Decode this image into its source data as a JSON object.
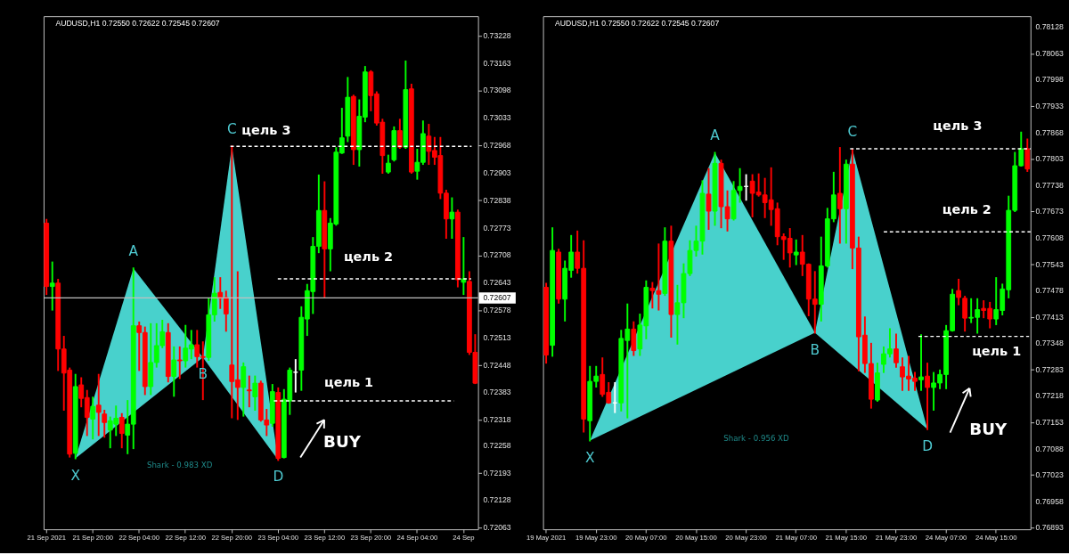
{
  "chart_data": [
    {
      "type": "candlestick",
      "title": "AUDUSD,H1  0.72550 0.72622 0.72545 0.72607",
      "grid": false,
      "categories": [
        "21 Sep 2021",
        null,
        null,
        null,
        null,
        null,
        null,
        null,
        "21 Sep 20:00",
        null,
        null,
        null,
        null,
        null,
        null,
        null,
        "22 Sep 04:00",
        null,
        null,
        null,
        null,
        null,
        null,
        null,
        "22 Sep 12:00",
        null,
        null,
        null,
        null,
        null,
        null,
        null,
        "22 Sep 20:00",
        null,
        null,
        null,
        null,
        null,
        null,
        null,
        "23 Sep 04:00",
        null,
        null,
        null,
        null,
        null,
        null,
        null,
        "23 Sep 12:00",
        null,
        null,
        null,
        null,
        null,
        null,
        null,
        "23 Sep 20:00",
        null,
        null,
        null,
        null,
        null,
        null,
        null,
        "24 Sep 04:00",
        null,
        null,
        null,
        null,
        null,
        null,
        null,
        "24 Sep",
        null,
        null
      ],
      "ohlc": [
        [
          0.72784,
          0.72792,
          0.72616,
          0.72634
        ],
        [
          0.72634,
          0.72691,
          0.72579,
          0.72642
        ],
        [
          0.72642,
          0.7265,
          0.72436,
          0.72486
        ],
        [
          0.72486,
          0.72515,
          0.72342,
          0.72429
        ],
        [
          0.72436,
          0.7244,
          0.72231,
          0.72237
        ],
        [
          0.72239,
          0.72425,
          0.72227,
          0.72397
        ],
        [
          0.72401,
          0.72417,
          0.7235,
          0.72369
        ],
        [
          0.72371,
          0.72387,
          0.72282,
          0.72324
        ],
        [
          0.7232,
          0.72371,
          0.72274,
          0.7235
        ],
        [
          0.72353,
          0.72425,
          0.72282,
          0.72336
        ],
        [
          0.72332,
          0.7234,
          0.72278,
          0.72312
        ],
        [
          0.72294,
          0.72324,
          0.72253,
          0.72316
        ],
        [
          0.72308,
          0.7235,
          0.72282,
          0.72322
        ],
        [
          0.72324,
          0.72332,
          0.72253,
          0.72286
        ],
        [
          0.72282,
          0.72363,
          0.72239,
          0.72308
        ],
        [
          0.72308,
          0.72677,
          0.72251,
          0.72541
        ],
        [
          0.72541,
          0.72549,
          0.72436,
          0.72525
        ],
        [
          0.72525,
          0.72537,
          0.72379,
          0.72397
        ],
        [
          0.72397,
          0.72545,
          0.72379,
          0.72454
        ],
        [
          0.72454,
          0.72545,
          0.72444,
          0.72494
        ],
        [
          0.72494,
          0.72553,
          0.7249,
          0.72527
        ],
        [
          0.72525,
          0.72545,
          0.72409,
          0.72421
        ],
        [
          0.72421,
          0.7249,
          0.72375,
          0.7246
        ],
        [
          0.7246,
          0.7249,
          0.72417,
          0.72458
        ],
        [
          0.72458,
          0.72541,
          0.72444,
          0.72488
        ],
        [
          0.72486,
          0.72529,
          0.72464,
          0.72496
        ],
        [
          0.72496,
          0.72529,
          0.72444,
          0.72468
        ],
        [
          0.72468,
          0.72502,
          0.72367,
          0.72466
        ],
        [
          0.72466,
          0.72604,
          0.7246,
          0.72567
        ],
        [
          0.72567,
          0.72654,
          0.72553,
          0.72618
        ],
        [
          0.7262,
          0.72654,
          0.72583,
          0.72606
        ],
        [
          0.72608,
          0.72622,
          0.72529,
          0.72569
        ],
        [
          0.72448,
          0.72966,
          0.72324,
          0.72409
        ],
        [
          0.72413,
          0.72668,
          0.7232,
          0.72395
        ],
        [
          0.72395,
          0.72452,
          0.72328,
          0.72444
        ],
        [
          0.72389,
          0.72421,
          0.7235,
          0.72387
        ],
        [
          0.72373,
          0.72421,
          0.72342,
          0.72405
        ],
        [
          0.72405,
          0.72409,
          0.72316,
          0.72318
        ],
        [
          0.72318,
          0.72342,
          0.72282,
          0.72306
        ],
        [
          0.7231,
          0.72401,
          0.72304,
          0.72385
        ],
        [
          0.72383,
          0.72393,
          0.72223,
          0.72227
        ],
        [
          0.72229,
          0.72389,
          0.72229,
          0.72367
        ],
        [
          0.72363,
          0.7244,
          0.72332,
          0.72436
        ],
        [
          0.72431,
          0.7246,
          0.72385,
          0.72431
        ],
        [
          0.72436,
          0.72585,
          0.72389,
          0.72561
        ],
        [
          0.72557,
          0.72638,
          0.72519,
          0.72624
        ],
        [
          0.72622,
          0.72749,
          0.72571,
          0.72729
        ],
        [
          0.72729,
          0.72897,
          0.72715,
          0.72814
        ],
        [
          0.72814,
          0.72881,
          0.7261,
          0.72723
        ],
        [
          0.72723,
          0.72794,
          0.72672,
          0.72784
        ],
        [
          0.72782,
          0.72962,
          0.7278,
          0.72952
        ],
        [
          0.7295,
          0.73055,
          0.7295,
          0.72986
        ],
        [
          0.7299,
          0.73128,
          0.72978,
          0.73082
        ],
        [
          0.73084,
          0.73086,
          0.72924,
          0.72958
        ],
        [
          0.72958,
          0.73075,
          0.7292,
          0.73037
        ],
        [
          0.73035,
          0.73154,
          0.73025,
          0.73142
        ],
        [
          0.73142,
          0.73144,
          0.73051,
          0.73086
        ],
        [
          0.7309,
          0.73094,
          0.73017,
          0.73021
        ],
        [
          0.73023,
          0.73029,
          0.72903,
          0.72944
        ],
        [
          0.72905,
          0.72944,
          0.72903,
          0.72926
        ],
        [
          0.72934,
          0.73011,
          0.72932,
          0.73003
        ],
        [
          0.73003,
          0.73029,
          0.72962,
          0.72964
        ],
        [
          0.72964,
          0.73167,
          0.72962,
          0.731
        ],
        [
          0.73102,
          0.73112,
          0.72903,
          0.72905
        ],
        [
          0.72907,
          0.72958,
          0.72889,
          0.72928
        ],
        [
          0.72928,
          0.73025,
          0.72924,
          0.72996
        ],
        [
          0.7299,
          0.73017,
          0.72924,
          0.72954
        ],
        [
          0.72956,
          0.72986,
          0.72924,
          0.7294
        ],
        [
          0.72944,
          0.72986,
          0.72843,
          0.72855
        ],
        [
          0.72855,
          0.72861,
          0.72749,
          0.72794
        ],
        [
          0.72794,
          0.72843,
          0.72749,
          0.7281
        ],
        [
          0.7281,
          0.72814,
          0.72634,
          0.7265
        ],
        [
          0.72644,
          0.72749,
          0.72616,
          0.72652
        ],
        [
          0.72646,
          0.72668,
          0.72474,
          0.72478
        ],
        [
          0.72478,
          0.72519,
          0.72405,
          0.72405
        ]
      ],
      "colors": [
        "#ff0000",
        "#00ff00",
        "#ff0000",
        "#ff0000",
        "#ff0000",
        "#00ff00",
        "#ff0000",
        "#ff0000",
        "#00ff00",
        "#ff0000",
        "#ff0000",
        "#00ff00",
        "#00ff00",
        "#ff0000",
        "#00ff00",
        "#00ff00",
        "#ff0000",
        "#ff0000",
        "#00ff00",
        "#00ff00",
        "#00ff00",
        "#ff0000",
        "#00ff00",
        "#ff0000",
        "#00ff00",
        "#00ff00",
        "#ff0000",
        "#ff0000",
        "#00ff00",
        "#00ff00",
        "#ff0000",
        "#ff0000",
        "#ff0000",
        "#ff0000",
        "#00ff00",
        "#ff0000",
        "#00ff00",
        "#ff0000",
        "#ff0000",
        "#00ff00",
        "#ff0000",
        "#00ff00",
        "#00ff00",
        "#ffffff",
        "#00ff00",
        "#00ff00",
        "#00ff00",
        "#00ff00",
        "#ff0000",
        "#00ff00",
        "#00ff00",
        "#00ff00",
        "#00ff00",
        "#ff0000",
        "#00ff00",
        "#00ff00",
        "#ff0000",
        "#ff0000",
        "#ff0000",
        "#00ff00",
        "#00ff00",
        "#ff0000",
        "#00ff00",
        "#ff0000",
        "#00ff00",
        "#00ff00",
        "#ff0000",
        "#ff0000",
        "#ff0000",
        "#ff0000",
        "#00ff00",
        "#ff0000",
        "#00ff00",
        "#ff0000",
        "#ff0000"
      ],
      "ylim": [
        0.72059,
        0.73274
      ],
      "yticks": [
        0.73228,
        0.73163,
        0.73098,
        0.73033,
        0.72968,
        0.72903,
        0.72838,
        0.72773,
        0.72708,
        0.72643,
        0.72578,
        0.72513,
        0.72448,
        0.72383,
        0.72318,
        0.72258,
        0.72193,
        0.72128,
        0.72063
      ],
      "ref_lines": [
        {
          "axis": "y",
          "value": 0.72966,
          "label": "цель 3",
          "color": "#ffffff",
          "line_style": "dashed"
        },
        {
          "axis": "y",
          "value": 0.72652,
          "label": "цель 2",
          "color": "#ffffff",
          "line_style": "dashed"
        },
        {
          "axis": "y",
          "value": 0.72363,
          "label": "цель 1",
          "color": "#ffffff",
          "line_style": "dashed"
        },
        {
          "axis": "y",
          "value": 0.72607,
          "label": "0.72607",
          "color": "#c0c0c0",
          "line_style": "solid"
        }
      ],
      "annotations": [
        "X",
        "A",
        "B",
        "C",
        "D",
        "BUY",
        "Shark - 0.983 XD"
      ]
    },
    {
      "type": "candlestick",
      "title": "AUDUSD,H1  0.72550 0.72622 0.72545 0.72607",
      "grid": false,
      "categories": [
        "19 May 2021",
        null,
        null,
        null,
        null,
        null,
        null,
        null,
        "19 May 23:00",
        null,
        null,
        null,
        null,
        null,
        null,
        null,
        "20 May 07:00",
        null,
        null,
        null,
        null,
        null,
        null,
        null,
        "20 May 15:00",
        null,
        null,
        null,
        null,
        null,
        null,
        null,
        "20 May 23:00",
        null,
        null,
        null,
        null,
        null,
        null,
        null,
        "21 May 07:00",
        null,
        null,
        null,
        null,
        null,
        null,
        null,
        "21 May 15:00",
        null,
        null,
        null,
        null,
        null,
        null,
        null,
        "21 May 23:00",
        null,
        null,
        null,
        null,
        null,
        null,
        null,
        "24 May 07:00",
        null,
        null,
        null,
        null,
        null,
        null,
        null,
        "24 May 15:00",
        null,
        null,
        null,
        null,
        null
      ],
      "ohlc": [
        [
          0.77486,
          0.77495,
          0.773,
          0.77319
        ],
        [
          0.77343,
          0.77632,
          0.77317,
          0.77577
        ],
        [
          0.77573,
          0.77579,
          0.77448,
          0.77457
        ],
        [
          0.77457,
          0.7755,
          0.77404,
          0.77533
        ],
        [
          0.77528,
          0.77613,
          0.77512,
          0.77573
        ],
        [
          0.77573,
          0.77624,
          0.77522,
          0.77533
        ],
        [
          0.77533,
          0.776,
          0.7713,
          0.77161
        ],
        [
          0.77157,
          0.7729,
          0.77108,
          0.77254
        ],
        [
          0.77254,
          0.7729,
          0.77241,
          0.77267
        ],
        [
          0.77271,
          0.77311,
          0.77218,
          0.77222
        ],
        [
          0.77227,
          0.7725,
          0.77201,
          0.77201
        ],
        [
          0.77201,
          0.7725,
          0.77178,
          0.77201
        ],
        [
          0.77201,
          0.77379,
          0.77182,
          0.7736
        ],
        [
          0.77355,
          0.77444,
          0.77165,
          0.77383
        ],
        [
          0.77383,
          0.774,
          0.77319,
          0.7733
        ],
        [
          0.77334,
          0.77419,
          0.77319,
          0.77393
        ],
        [
          0.77391,
          0.77501,
          0.7736,
          0.77486
        ],
        [
          0.77484,
          0.77497,
          0.77436,
          0.77478
        ],
        [
          0.77478,
          0.77592,
          0.77431,
          0.77469
        ],
        [
          0.77471,
          0.77632,
          0.77467,
          0.776
        ],
        [
          0.776,
          0.77636,
          0.77364,
          0.77419
        ],
        [
          0.77419,
          0.7749,
          0.77347,
          0.77448
        ],
        [
          0.77448,
          0.77543,
          0.77412,
          0.7752
        ],
        [
          0.7752,
          0.776,
          0.77516,
          0.77577
        ],
        [
          0.77577,
          0.77636,
          0.77564,
          0.776
        ],
        [
          0.776,
          0.77748,
          0.77569,
          0.77718
        ],
        [
          0.77716,
          0.77778,
          0.7763,
          0.77674
        ],
        [
          0.77674,
          0.77818,
          0.7764,
          0.77792
        ],
        [
          0.77792,
          0.77799,
          0.77634,
          0.77685
        ],
        [
          0.77685,
          0.77723,
          0.77626,
          0.77655
        ],
        [
          0.77655,
          0.77746,
          0.77653,
          0.77725
        ],
        [
          0.77725,
          0.77778,
          0.77697,
          0.77735
        ],
        [
          0.77735,
          0.77763,
          0.77702,
          0.77735
        ],
        [
          0.77748,
          0.77763,
          0.77661,
          0.77718
        ],
        [
          0.77721,
          0.77765,
          0.77712,
          0.77714
        ],
        [
          0.77714,
          0.77754,
          0.77659,
          0.77695
        ],
        [
          0.77702,
          0.7778,
          0.7764,
          0.77678
        ],
        [
          0.7768,
          0.77693,
          0.77592,
          0.77611
        ],
        [
          0.77611,
          0.77617,
          0.77556,
          0.77604
        ],
        [
          0.77607,
          0.7763,
          0.77537,
          0.77571
        ],
        [
          0.77566,
          0.77602,
          0.77543,
          0.77573
        ],
        [
          0.77573,
          0.77613,
          0.77516,
          0.77543
        ],
        [
          0.77543,
          0.77543,
          0.77417,
          0.77457
        ],
        [
          0.77457,
          0.77524,
          0.77374,
          0.77444
        ],
        [
          0.77444,
          0.77609,
          0.77404,
          0.77539
        ],
        [
          0.77539,
          0.7768,
          0.77537,
          0.77655
        ],
        [
          0.77655,
          0.77769,
          0.77649,
          0.77714
        ],
        [
          0.77718,
          0.7783,
          0.77596,
          0.7768
        ],
        [
          0.7768,
          0.77799,
          0.77596,
          0.7779
        ],
        [
          0.7779,
          0.77826,
          0.77533,
          0.77583
        ],
        [
          0.77583,
          0.77609,
          0.77281,
          0.77364
        ],
        [
          0.77368,
          0.77412,
          0.77277,
          0.77298
        ],
        [
          0.77298,
          0.77347,
          0.77189,
          0.7721
        ],
        [
          0.77208,
          0.77298,
          0.77206,
          0.77275
        ],
        [
          0.77296,
          0.77338,
          0.77277,
          0.77322
        ],
        [
          0.77322,
          0.77383,
          0.77315,
          0.77334
        ],
        [
          0.77334,
          0.7737,
          0.7729,
          0.773
        ],
        [
          0.7729,
          0.77311,
          0.77233,
          0.77265
        ],
        [
          0.77267,
          0.77315,
          0.77233,
          0.7726
        ],
        [
          0.77262,
          0.77275,
          0.77233,
          0.77254
        ],
        [
          0.77258,
          0.77368,
          0.77233,
          0.77265
        ],
        [
          0.77267,
          0.77298,
          0.77136,
          0.77239
        ],
        [
          0.77239,
          0.77275,
          0.77184,
          0.7725
        ],
        [
          0.7725,
          0.77281,
          0.77237,
          0.77271
        ],
        [
          0.77271,
          0.77391,
          0.77237,
          0.77379
        ],
        [
          0.77379,
          0.7748,
          0.77379,
          0.77469
        ],
        [
          0.77478,
          0.77505,
          0.77444,
          0.77461
        ],
        [
          0.77459,
          0.77463,
          0.77379,
          0.7741
        ],
        [
          0.7741,
          0.77457,
          0.774,
          0.77412
        ],
        [
          0.77412,
          0.77457,
          0.77374,
          0.77431
        ],
        [
          0.77434,
          0.77452,
          0.77412,
          0.77429
        ],
        [
          0.77434,
          0.77448,
          0.77387,
          0.77408
        ],
        [
          0.77408,
          0.77509,
          0.77395,
          0.77431
        ],
        [
          0.77429,
          0.77493,
          0.77419,
          0.77482
        ],
        [
          0.7748,
          0.7771,
          0.77461,
          0.77676
        ],
        [
          0.77676,
          0.77818,
          0.77674,
          0.77786
        ],
        [
          0.77786,
          0.77868,
          0.77786,
          0.77828
        ],
        [
          0.77828,
          0.77851,
          0.77773,
          0.77778
        ]
      ],
      "colors": [
        "#ff0000",
        "#00ff00",
        "#ff0000",
        "#00ff00",
        "#00ff00",
        "#ff0000",
        "#ff0000",
        "#00ff00",
        "#00ff00",
        "#ff0000",
        "#ff0000",
        "#ffffff",
        "#00ff00",
        "#00ff00",
        "#ff0000",
        "#00ff00",
        "#00ff00",
        "#ff0000",
        "#ff0000",
        "#00ff00",
        "#ff0000",
        "#00ff00",
        "#00ff00",
        "#00ff00",
        "#00ff00",
        "#00ff00",
        "#ff0000",
        "#00ff00",
        "#ff0000",
        "#ff0000",
        "#00ff00",
        "#00ff00",
        "#ffffff",
        "#ff0000",
        "#ff0000",
        "#ff0000",
        "#ff0000",
        "#ff0000",
        "#ff0000",
        "#ff0000",
        "#00ff00",
        "#ff0000",
        "#ff0000",
        "#ff0000",
        "#00ff00",
        "#00ff00",
        "#00ff00",
        "#ff0000",
        "#00ff00",
        "#ff0000",
        "#ff0000",
        "#ff0000",
        "#ff0000",
        "#00ff00",
        "#00ff00",
        "#00ff00",
        "#ff0000",
        "#ff0000",
        "#ff0000",
        "#ff0000",
        "#00ff00",
        "#ff0000",
        "#00ff00",
        "#00ff00",
        "#00ff00",
        "#00ff00",
        "#ff0000",
        "#ff0000",
        "#00ff00",
        "#00ff00",
        "#ff0000",
        "#ff0000",
        "#00ff00",
        "#00ff00",
        "#00ff00",
        "#00ff00",
        "#00ff00",
        "#ff0000"
      ],
      "ylim": [
        0.76889,
        0.78155
      ],
      "yticks": [
        0.78128,
        0.78063,
        0.77998,
        0.77933,
        0.77868,
        0.77803,
        0.77738,
        0.77673,
        0.77608,
        0.77543,
        0.77478,
        0.77413,
        0.77348,
        0.77283,
        0.77218,
        0.77153,
        0.77088,
        0.77023,
        0.76958,
        0.76893
      ],
      "ref_lines": [
        {
          "axis": "y",
          "value": 0.77828,
          "label": "цель 3",
          "color": "#ffffff",
          "line_style": "dashed"
        },
        {
          "axis": "y",
          "value": 0.77623,
          "label": "цель 2",
          "color": "#ffffff",
          "line_style": "dashed"
        },
        {
          "axis": "y",
          "value": 0.77365,
          "label": "цель 1",
          "color": "#ffffff",
          "line_style": "dashed"
        }
      ],
      "annotations": [
        "X",
        "A",
        "B",
        "C",
        "D",
        "BUY",
        "Shark - 0.956 XD"
      ]
    }
  ]
}
